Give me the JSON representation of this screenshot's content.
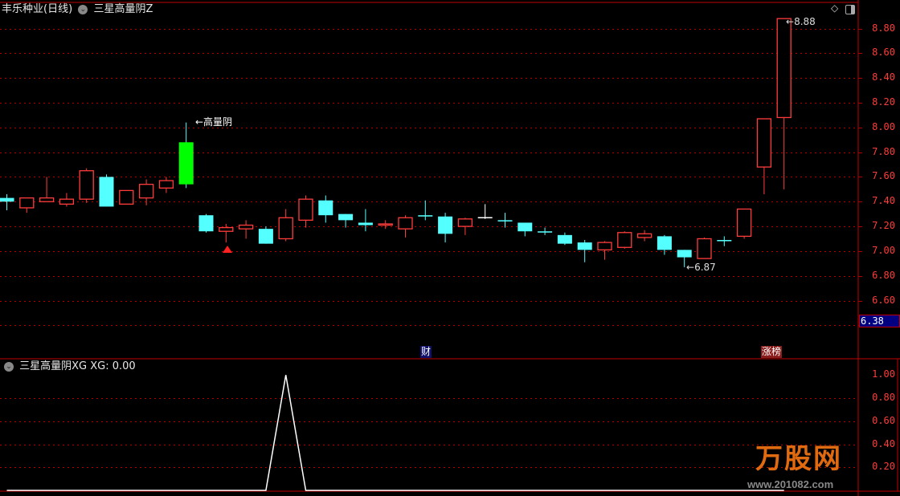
{
  "header": {
    "stock_title": "丰乐种业(日线)",
    "indicator_name": "三星高量阴Z"
  },
  "lower_panel": {
    "title": "三星高量阴XG",
    "value_label": "XG: 0.00"
  },
  "annotations": {
    "signal_label": "←高量阴",
    "high_label": "8.88",
    "low_label": "6.87",
    "finance_tag": "财",
    "limit_up_list_tag": "涨榜",
    "current_price_box": "6.38"
  },
  "icons": {
    "settings_dropdown": "chevron-down-circle-icon",
    "diamond": "diamond-icon",
    "panel_toggle": "panel-toggle-icon"
  },
  "watermark": {
    "logo_text": "万股网",
    "logo_url_text": "www.201082.com"
  },
  "colors": {
    "up": "#ff3c3c",
    "down": "#54ffff",
    "signal": "#00ff00",
    "flat": "#ffffff",
    "grid": "#b00000",
    "axis_text": "#ff3c3c",
    "price_box": "#000080"
  },
  "chart_data": [
    {
      "type": "candlestick",
      "ylim": [
        6.3,
        8.95
      ],
      "y_ticks": [
        "8.80",
        "8.60",
        "8.40",
        "8.20",
        "8.00",
        "7.80",
        "7.60",
        "7.40",
        "7.20",
        "7.00",
        "6.80",
        "6.60"
      ],
      "grid": true,
      "ohlc": [
        [
          7.43,
          7.46,
          7.33,
          7.4
        ],
        [
          7.35,
          7.43,
          7.31,
          7.43
        ],
        [
          7.4,
          7.6,
          7.4,
          7.43
        ],
        [
          7.38,
          7.47,
          7.36,
          7.42
        ],
        [
          7.42,
          7.67,
          7.39,
          7.65
        ],
        [
          7.6,
          7.62,
          7.36,
          7.36
        ],
        [
          7.38,
          7.49,
          7.38,
          7.49
        ],
        [
          7.43,
          7.58,
          7.37,
          7.54
        ],
        [
          7.51,
          7.6,
          7.47,
          7.57
        ],
        [
          7.88,
          8.04,
          7.51,
          7.54
        ],
        [
          7.29,
          7.3,
          7.15,
          7.16
        ],
        [
          7.16,
          7.22,
          7.07,
          7.19
        ],
        [
          7.18,
          7.25,
          7.1,
          7.21
        ],
        [
          7.18,
          7.2,
          7.06,
          7.06
        ],
        [
          7.1,
          7.34,
          7.08,
          7.27
        ],
        [
          7.25,
          7.45,
          7.19,
          7.42
        ],
        [
          7.41,
          7.45,
          7.23,
          7.29
        ],
        [
          7.3,
          7.3,
          7.19,
          7.25
        ],
        [
          7.23,
          7.34,
          7.16,
          7.21
        ],
        [
          7.21,
          7.25,
          7.18,
          7.22
        ],
        [
          7.18,
          7.29,
          7.11,
          7.27
        ],
        [
          7.29,
          7.41,
          7.25,
          7.28
        ],
        [
          7.28,
          7.31,
          7.07,
          7.14
        ],
        [
          7.2,
          7.27,
          7.13,
          7.26
        ],
        [
          7.27,
          7.38,
          7.26,
          7.27
        ],
        [
          7.25,
          7.31,
          7.19,
          7.24
        ],
        [
          7.23,
          7.23,
          7.12,
          7.16
        ],
        [
          7.16,
          7.19,
          7.13,
          7.15
        ],
        [
          7.13,
          7.15,
          7.05,
          7.06
        ],
        [
          7.07,
          7.09,
          6.91,
          7.01
        ],
        [
          7.01,
          7.08,
          6.93,
          7.07
        ],
        [
          7.03,
          7.16,
          7.02,
          7.15
        ],
        [
          7.11,
          7.17,
          7.08,
          7.14
        ],
        [
          7.12,
          7.13,
          6.97,
          7.01
        ],
        [
          7.01,
          7.01,
          6.87,
          6.95
        ],
        [
          6.94,
          7.11,
          6.94,
          7.1
        ],
        [
          7.09,
          7.12,
          7.04,
          7.08
        ],
        [
          7.12,
          7.34,
          7.1,
          7.34
        ],
        [
          7.68,
          8.07,
          7.46,
          8.07
        ],
        [
          8.08,
          8.88,
          7.5,
          8.88
        ]
      ],
      "signal_index": 9,
      "high_marker_index": 39,
      "low_marker_index": 34
    },
    {
      "type": "line",
      "series": [
        {
          "name": "XG",
          "values": [
            0,
            0,
            0,
            0,
            0,
            0,
            0,
            0,
            0,
            0,
            0,
            0,
            0,
            0,
            1,
            0,
            0,
            0,
            0,
            0,
            0,
            0,
            0,
            0,
            0,
            0,
            0,
            0,
            0,
            0,
            0,
            0,
            0,
            0,
            0,
            0,
            0,
            0,
            0,
            0
          ]
        }
      ],
      "ylim": [
        0,
        1.05
      ],
      "y_ticks": [
        "1.00",
        "0.80",
        "0.60",
        "0.40",
        "0.20"
      ],
      "grid": true
    }
  ]
}
